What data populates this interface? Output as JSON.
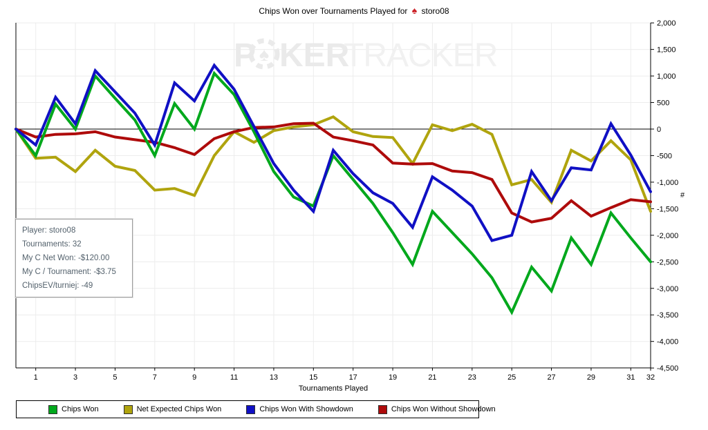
{
  "title": {
    "prefix": "Chips Won over Tournaments Played for",
    "icon": "♠",
    "player": "storo08"
  },
  "watermark": {
    "p": "P",
    "ker": "KER",
    "tracker": "TRACKER",
    "chip_spade": "♠"
  },
  "info_box": {
    "lines": [
      "Player: storo08",
      "Tournaments: 32",
      "My C Net Won: -$120.00",
      "My C / Tournament: -$3.75",
      "ChipsEV/turniej: -49"
    ]
  },
  "chart_data": {
    "type": "line",
    "title": "Chips Won over Tournaments Played for storo08",
    "xlabel": "Tournaments Played",
    "ylabel": "#",
    "grid": true,
    "legend_position": "bottom",
    "ylim": [
      -4500,
      2000
    ],
    "xlim": [
      0,
      32
    ],
    "x_ticks": [
      1,
      3,
      5,
      7,
      9,
      11,
      13,
      15,
      17,
      19,
      21,
      23,
      25,
      27,
      29,
      31,
      32
    ],
    "y_tick_values": [
      2000,
      1500,
      1000,
      500,
      0,
      -500,
      -1000,
      -1500,
      -2000,
      -2500,
      -3000,
      -3500,
      -4000,
      -4500
    ],
    "y_tick_labels": [
      "2,000",
      "1,500",
      "1,000",
      "500",
      "0",
      "-500",
      "-1,000",
      "-1,500",
      "-2,000",
      "-2,500",
      "-3,000",
      "-3,500",
      "-4,000",
      "-4,500"
    ],
    "x": [
      0,
      1,
      2,
      3,
      4,
      5,
      6,
      7,
      8,
      9,
      10,
      11,
      12,
      13,
      14,
      15,
      16,
      17,
      18,
      19,
      20,
      21,
      22,
      23,
      24,
      25,
      26,
      27,
      28,
      29,
      30,
      31,
      32
    ],
    "series": [
      {
        "name": "Chips Won",
        "color": "#00a81c",
        "values": [
          0,
          -500,
          470,
          0,
          1000,
          580,
          170,
          -500,
          480,
          0,
          1050,
          650,
          -50,
          -800,
          -1280,
          -1450,
          -500,
          -950,
          -1400,
          -1950,
          -2550,
          -1550,
          -1950,
          -2350,
          -2800,
          -3450,
          -2600,
          -3050,
          -2050,
          -2550,
          -1580,
          -2050,
          -2500
        ]
      },
      {
        "name": "Net Expected Chips Won",
        "color": "#b0a40e",
        "values": [
          0,
          -550,
          -530,
          -800,
          -400,
          -700,
          -780,
          -1150,
          -1120,
          -1250,
          -500,
          -50,
          -250,
          -30,
          40,
          80,
          230,
          -50,
          -140,
          -160,
          -650,
          80,
          -30,
          90,
          -100,
          -1050,
          -950,
          -1380,
          -400,
          -600,
          -220,
          -580,
          -1550
        ]
      },
      {
        "name": "Chips Won With Showdown",
        "color": "#1010c4",
        "values": [
          0,
          -300,
          600,
          100,
          1100,
          700,
          300,
          -300,
          870,
          530,
          1200,
          750,
          50,
          -650,
          -1150,
          -1550,
          -400,
          -840,
          -1200,
          -1400,
          -1850,
          -900,
          -1150,
          -1450,
          -2100,
          -2000,
          -800,
          -1350,
          -730,
          -770,
          100,
          -490,
          -1180
        ]
      },
      {
        "name": "Chips Won Without Showdown",
        "color": "#ae0b0b",
        "values": [
          0,
          -150,
          -100,
          -90,
          -50,
          -150,
          -200,
          -250,
          -350,
          -480,
          -180,
          -50,
          30,
          40,
          100,
          110,
          -150,
          -220,
          -300,
          -640,
          -660,
          -650,
          -790,
          -820,
          -950,
          -1580,
          -1750,
          -1680,
          -1350,
          -1640,
          -1480,
          -1330,
          -1370
        ]
      }
    ]
  },
  "colors": {
    "grid": "#ececec",
    "axis": "#000000",
    "watermark_bold": "#eaeaea",
    "watermark_light": "#f1f1f1"
  }
}
